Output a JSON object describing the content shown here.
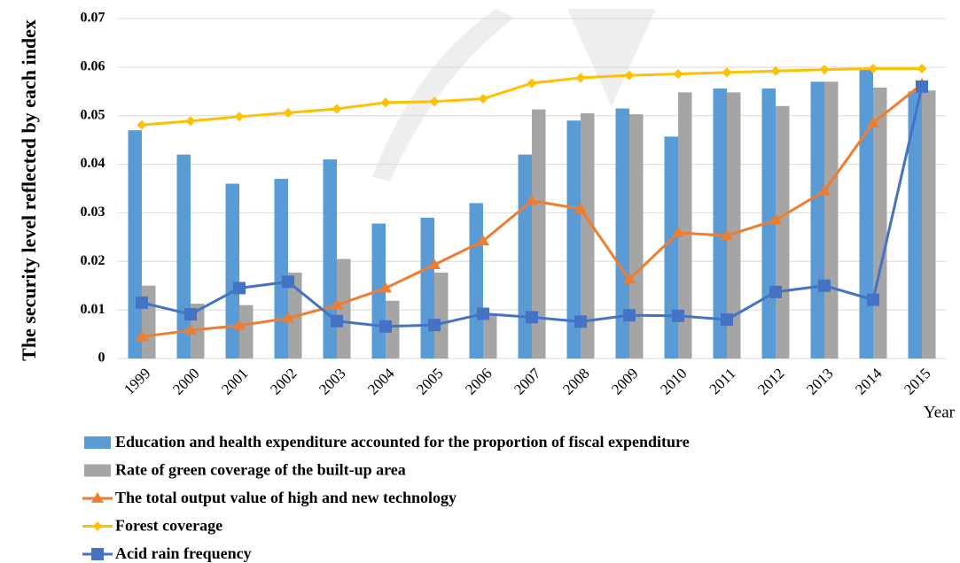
{
  "chart_data": {
    "type": "bar",
    "y_label": "The security level reflected by each index",
    "x_label": "Year",
    "categories": [
      "1999",
      "2000",
      "2001",
      "2002",
      "2003",
      "2004",
      "2005",
      "2006",
      "2007",
      "2008",
      "2009",
      "2010",
      "2011",
      "2012",
      "2013",
      "2014",
      "2015"
    ],
    "series": [
      {
        "name": "Education and health expenditure accounted for the proportion of fiscal expenditure",
        "type": "bar",
        "color": "#5b9bd5",
        "values": [
          0.047,
          0.042,
          0.036,
          0.037,
          0.041,
          0.0278,
          0.029,
          0.032,
          0.042,
          0.049,
          0.0515,
          0.0457,
          0.0556,
          0.0556,
          0.057,
          0.0595,
          0.055
        ]
      },
      {
        "name": "Rate of green coverage of the built-up area",
        "type": "bar",
        "color": "#a5a5a5",
        "values": [
          0.015,
          0.0113,
          0.011,
          0.0177,
          0.0205,
          0.0119,
          0.0177,
          0.009,
          0.0513,
          0.0505,
          0.0503,
          0.0548,
          0.0548,
          0.052,
          0.057,
          0.0558,
          0.0552
        ]
      },
      {
        "name": "The total output value of high and new technology",
        "type": "line",
        "marker": "triangle",
        "color": "#ed7d31",
        "values": [
          0.0045,
          0.0058,
          0.0068,
          0.0083,
          0.011,
          0.0145,
          0.0193,
          0.0242,
          0.0325,
          0.0308,
          0.0163,
          0.0259,
          0.0253,
          0.0285,
          0.0345,
          0.0485,
          0.0565
        ]
      },
      {
        "name": "Forest coverage",
        "type": "line",
        "marker": "diamond",
        "color": "#ffc000",
        "values": [
          0.0481,
          0.0489,
          0.0498,
          0.0506,
          0.0514,
          0.0527,
          0.0529,
          0.0535,
          0.0567,
          0.0578,
          0.0583,
          0.0586,
          0.0589,
          0.0592,
          0.0595,
          0.0597,
          0.0597
        ]
      },
      {
        "name": "Acid rain frequency",
        "type": "line",
        "marker": "square",
        "color": "#4472c4",
        "values": [
          0.0115,
          0.0091,
          0.0145,
          0.0158,
          0.0077,
          0.0066,
          0.0069,
          0.0092,
          0.0085,
          0.0076,
          0.0089,
          0.0088,
          0.008,
          0.0137,
          0.015,
          0.0121,
          0.056
        ]
      }
    ],
    "ylim": [
      0,
      0.07
    ],
    "yticks": [
      0,
      0.01,
      0.02,
      0.03,
      0.04,
      0.05,
      0.06,
      0.07
    ],
    "grid": true,
    "legend": "bottom"
  }
}
